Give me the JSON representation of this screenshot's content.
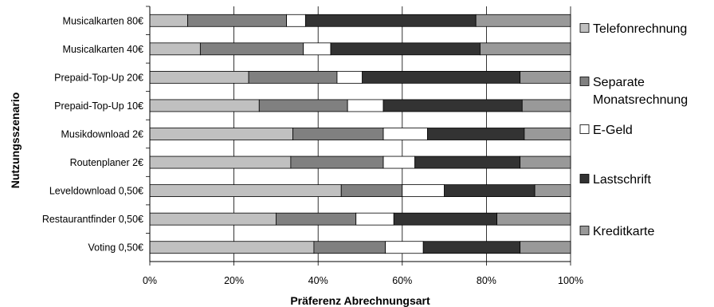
{
  "chart_data": {
    "type": "bar",
    "orientation": "horizontal",
    "stacked": "percent",
    "xlabel": "Präferenz Abrechnungsart",
    "ylabel": "Nutzungsszenario",
    "xlim": [
      0,
      100
    ],
    "x_ticks": [
      "0%",
      "20%",
      "40%",
      "60%",
      "80%",
      "100%"
    ],
    "grid": "vertical",
    "legend_position": "right",
    "categories": [
      "Musicalkarten 80€",
      "Musicalkarten 40€",
      "Prepaid-Top-Up 20€",
      "Prepaid-Top-Up 10€",
      "Musikdownload 2€",
      "Routenplaner 2€",
      "Leveldownload 0,50€",
      "Restaurantfinder 0,50€",
      "Voting 0,50€"
    ],
    "series": [
      {
        "name": "Telefonrechnung",
        "color": "#c0c0c0",
        "values": [
          9,
          12,
          23.5,
          26,
          34,
          33.5,
          45.5,
          30,
          39
        ]
      },
      {
        "name": "Separate Monatsrechnung",
        "legend_lines": [
          "Separate",
          "Monatsrechnung"
        ],
        "color": "#808080",
        "values": [
          23.5,
          24.5,
          21,
          21,
          21.5,
          22,
          14.5,
          19,
          17
        ]
      },
      {
        "name": "E-Geld",
        "color": "#ffffff",
        "values": [
          4.5,
          6.5,
          6,
          8.5,
          10.5,
          7.5,
          10,
          9,
          9
        ]
      },
      {
        "name": "Lastschrift",
        "color": "#333333",
        "values": [
          40.5,
          35.5,
          37.5,
          33,
          23,
          25,
          21.5,
          24.5,
          23
        ]
      },
      {
        "name": "Kreditkarte",
        "color": "#999999",
        "values": [
          22.5,
          21.5,
          12,
          11.5,
          11,
          12,
          8.5,
          17.5,
          12
        ]
      }
    ]
  }
}
